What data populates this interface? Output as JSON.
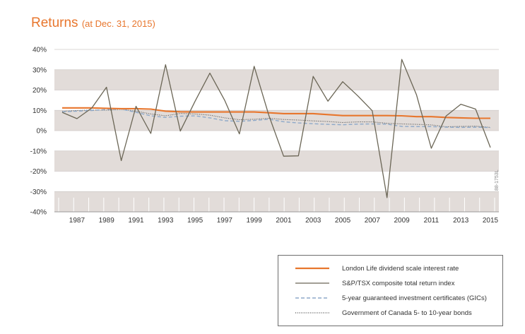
{
  "header": {
    "title": "Returns",
    "subtitle": "(at Dec. 31, 2015)"
  },
  "code": "88-1753L",
  "colors": {
    "accent": "#e8762d",
    "sp_tsx": "#6b6656",
    "gic": "#8ea9c9",
    "bonds": "#4f4f4f",
    "band": "#e2dcd9"
  },
  "chart_data": {
    "type": "line",
    "title": "Returns",
    "subtitle": "(at Dec. 31, 2015)",
    "xlabel": "",
    "ylabel": "",
    "ylim": [
      -40,
      40
    ],
    "xlim": [
      1986,
      2015
    ],
    "y_ticks": [
      "40%",
      "30%",
      "20%",
      "10%",
      "0%",
      "-10%",
      "-20%",
      "-30%",
      "-40%"
    ],
    "y_tick_values": [
      40,
      30,
      20,
      10,
      0,
      -10,
      -20,
      -30,
      -40
    ],
    "x_ticks": [
      "1987",
      "1989",
      "1991",
      "1993",
      "1995",
      "1997",
      "1999",
      "2001",
      "2003",
      "2005",
      "2007",
      "2009",
      "2011",
      "2013",
      "2015"
    ],
    "x_tick_values": [
      1987,
      1989,
      1991,
      1993,
      1995,
      1997,
      1999,
      2001,
      2003,
      2005,
      2007,
      2009,
      2011,
      2013,
      2015
    ],
    "grid": "alternating horizontal bands",
    "legend_position": "bottom-right",
    "x": [
      1986,
      1987,
      1988,
      1989,
      1990,
      1991,
      1992,
      1993,
      1994,
      1995,
      1996,
      1997,
      1998,
      1999,
      2000,
      2001,
      2002,
      2003,
      2004,
      2005,
      2006,
      2007,
      2008,
      2009,
      2010,
      2011,
      2012,
      2013,
      2014,
      2015
    ],
    "series": [
      {
        "name": "London Life dividend scale interest rate",
        "key": "london_life",
        "style": "solid-thick",
        "values": [
          11.2,
          11.2,
          11.2,
          11.0,
          10.8,
          10.8,
          10.6,
          9.6,
          9.3,
          9.2,
          9.2,
          9.2,
          9.2,
          9.2,
          8.8,
          8.4,
          8.4,
          8.4,
          7.9,
          7.4,
          7.4,
          7.4,
          7.4,
          7.3,
          6.9,
          6.9,
          6.5,
          6.3,
          6.1,
          6.1
        ]
      },
      {
        "name": "S&P/TSX composite total return index",
        "key": "sp_tsx",
        "style": "solid",
        "values": [
          9.0,
          5.9,
          11.1,
          21.4,
          -14.8,
          12.0,
          -1.4,
          32.5,
          -0.2,
          14.5,
          28.3,
          15.0,
          -1.6,
          31.7,
          7.4,
          -12.6,
          -12.4,
          26.7,
          14.5,
          24.1,
          17.3,
          9.8,
          -33.0,
          35.1,
          17.6,
          -8.7,
          7.2,
          13.0,
          10.6,
          -8.3
        ]
      },
      {
        "name": "5-year guaranteed investment certificates (GICs)",
        "key": "gic",
        "style": "dashed",
        "values": [
          9.3,
          9.6,
          9.9,
          10.4,
          10.6,
          9.0,
          7.3,
          6.5,
          7.1,
          7.3,
          6.3,
          4.9,
          4.6,
          5.0,
          5.6,
          4.4,
          3.8,
          3.4,
          3.1,
          2.9,
          3.2,
          3.3,
          3.2,
          2.1,
          2.0,
          2.0,
          1.7,
          1.6,
          1.7,
          1.5
        ]
      },
      {
        "name": "Government of Canada 5- to 10-year bonds",
        "key": "bonds",
        "style": "dotted",
        "values": [
          9.5,
          9.9,
          10.2,
          10.1,
          10.5,
          9.6,
          8.2,
          7.3,
          8.5,
          8.2,
          7.6,
          6.3,
          5.4,
          5.6,
          6.1,
          5.5,
          5.2,
          4.8,
          4.5,
          4.0,
          4.3,
          4.3,
          3.6,
          3.3,
          3.1,
          2.8,
          1.9,
          2.1,
          2.2,
          1.6
        ]
      }
    ]
  }
}
